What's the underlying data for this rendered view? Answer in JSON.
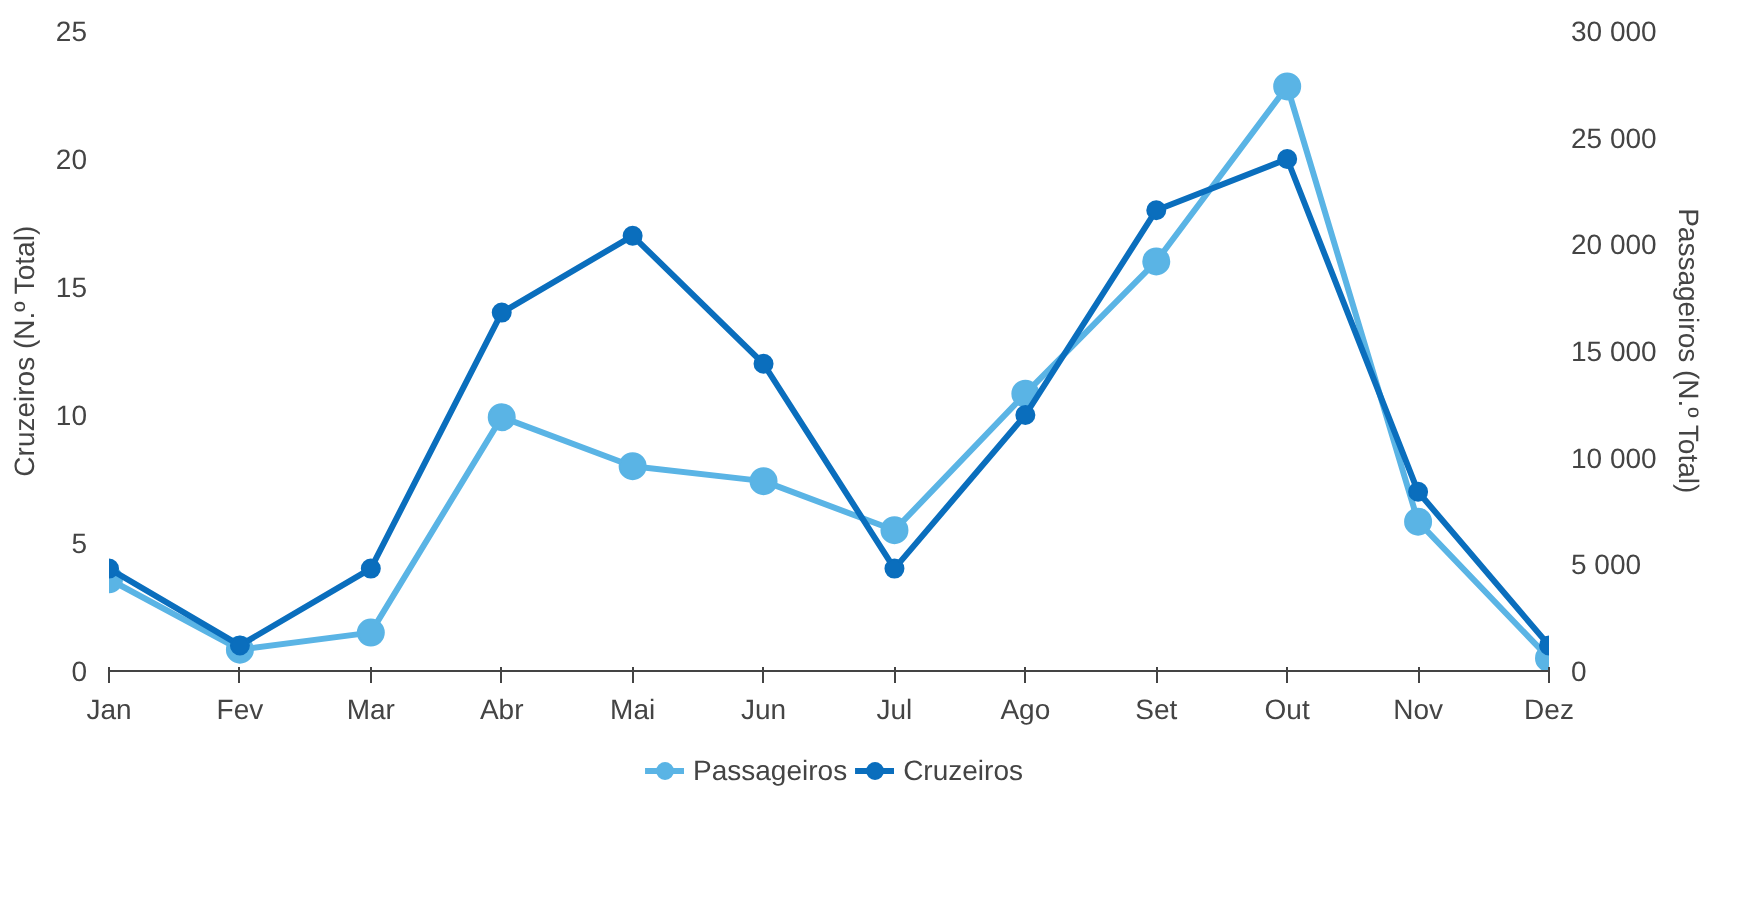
{
  "chart_data": {
    "type": "line",
    "ylabel": "Cruzeiros (N.º Total)",
    "y2label": "Passageiros (N.º Total)",
    "categories": [
      "Jan",
      "Fev",
      "Mar",
      "Abr",
      "Mai",
      "Jun",
      "Jul",
      "Ago",
      "Set",
      "Out",
      "Nov",
      "Dez"
    ],
    "series": [
      {
        "name": "Passageiros",
        "color": "#5ab4e5",
        "axis": "y2",
        "values": [
          4300,
          1000,
          1800,
          11900,
          9600,
          8900,
          6600,
          13000,
          19200,
          27400,
          7000,
          600
        ]
      },
      {
        "name": "Cruzeiros",
        "color": "#0a6ebd",
        "values": [
          4,
          1,
          4,
          14,
          17,
          12,
          4,
          10,
          18,
          20,
          7,
          1
        ]
      }
    ],
    "ylim": [
      0,
      25
    ],
    "yticks": [
      0,
      5,
      10,
      15,
      20,
      25
    ],
    "y2lim": [
      0,
      30000
    ],
    "y2ticks": [
      0,
      {
        "value": 5000,
        "label": "5 000"
      },
      {
        "value": 10000,
        "label": "10 000"
      },
      {
        "value": 15000,
        "label": "15 000"
      },
      {
        "value": 20000,
        "label": "20 000"
      },
      {
        "value": 25000,
        "label": "25 000"
      },
      {
        "value": 30000,
        "label": "30 000"
      }
    ],
    "marker": "circle",
    "line_style": "solid",
    "grid": false,
    "legend": "bottom"
  }
}
